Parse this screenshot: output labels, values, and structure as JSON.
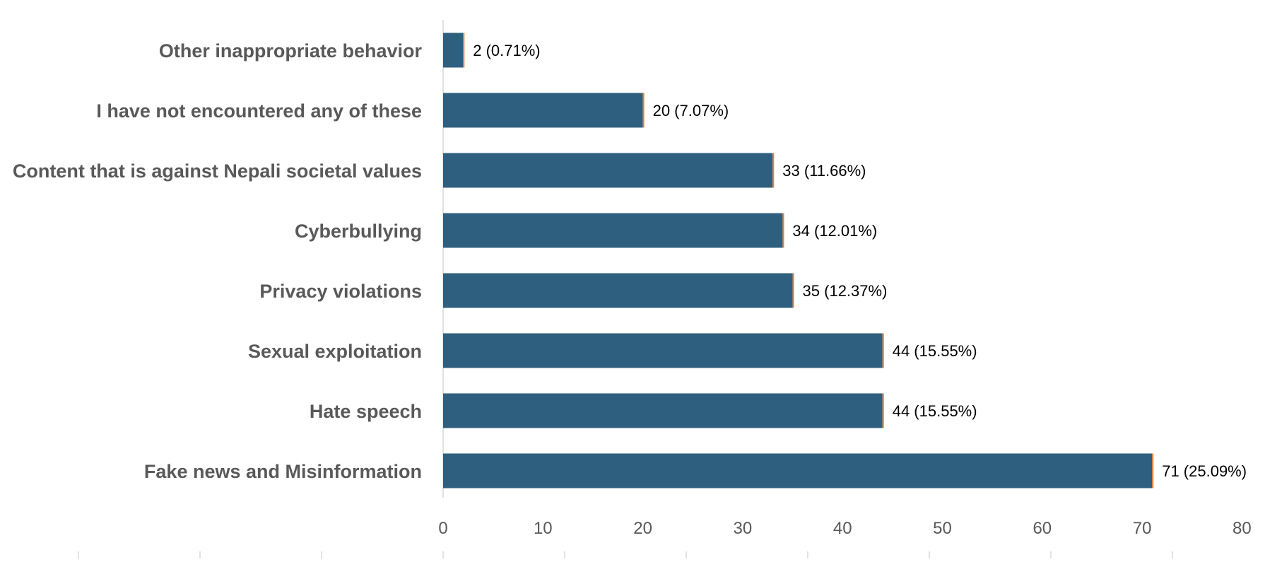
{
  "chart_data": {
    "type": "bar",
    "orientation": "horizontal",
    "categories": [
      "Other inappropriate behavior",
      "I have not encountered any of these",
      "Content that is against Nepali societal values",
      "Cyberbullying",
      "Privacy violations",
      "Sexual exploitation",
      "Hate speech",
      "Fake news and Misinformation"
    ],
    "values": [
      2,
      20,
      33,
      34,
      35,
      44,
      44,
      71
    ],
    "data_labels": [
      "2 (0.71%)",
      "20 (7.07%)",
      "33 (11.66%)",
      "34 (12.01%)",
      "35 (12.37%)",
      "44 (15.55%)",
      "44 (15.55%)",
      "71 (25.09%)"
    ],
    "x_ticks": [
      "0",
      "10",
      "20",
      "30",
      "40",
      "50",
      "60",
      "70",
      "80"
    ],
    "xlim": [
      0,
      80
    ],
    "grid": false,
    "legend": "none",
    "colors": {
      "bar": "#2f5f7f",
      "bar_edge": "#ed7d31",
      "axis": "#d9d9d9",
      "category_text": "#595959",
      "tick_text": "#595959",
      "data_label_text": "#000000"
    }
  }
}
